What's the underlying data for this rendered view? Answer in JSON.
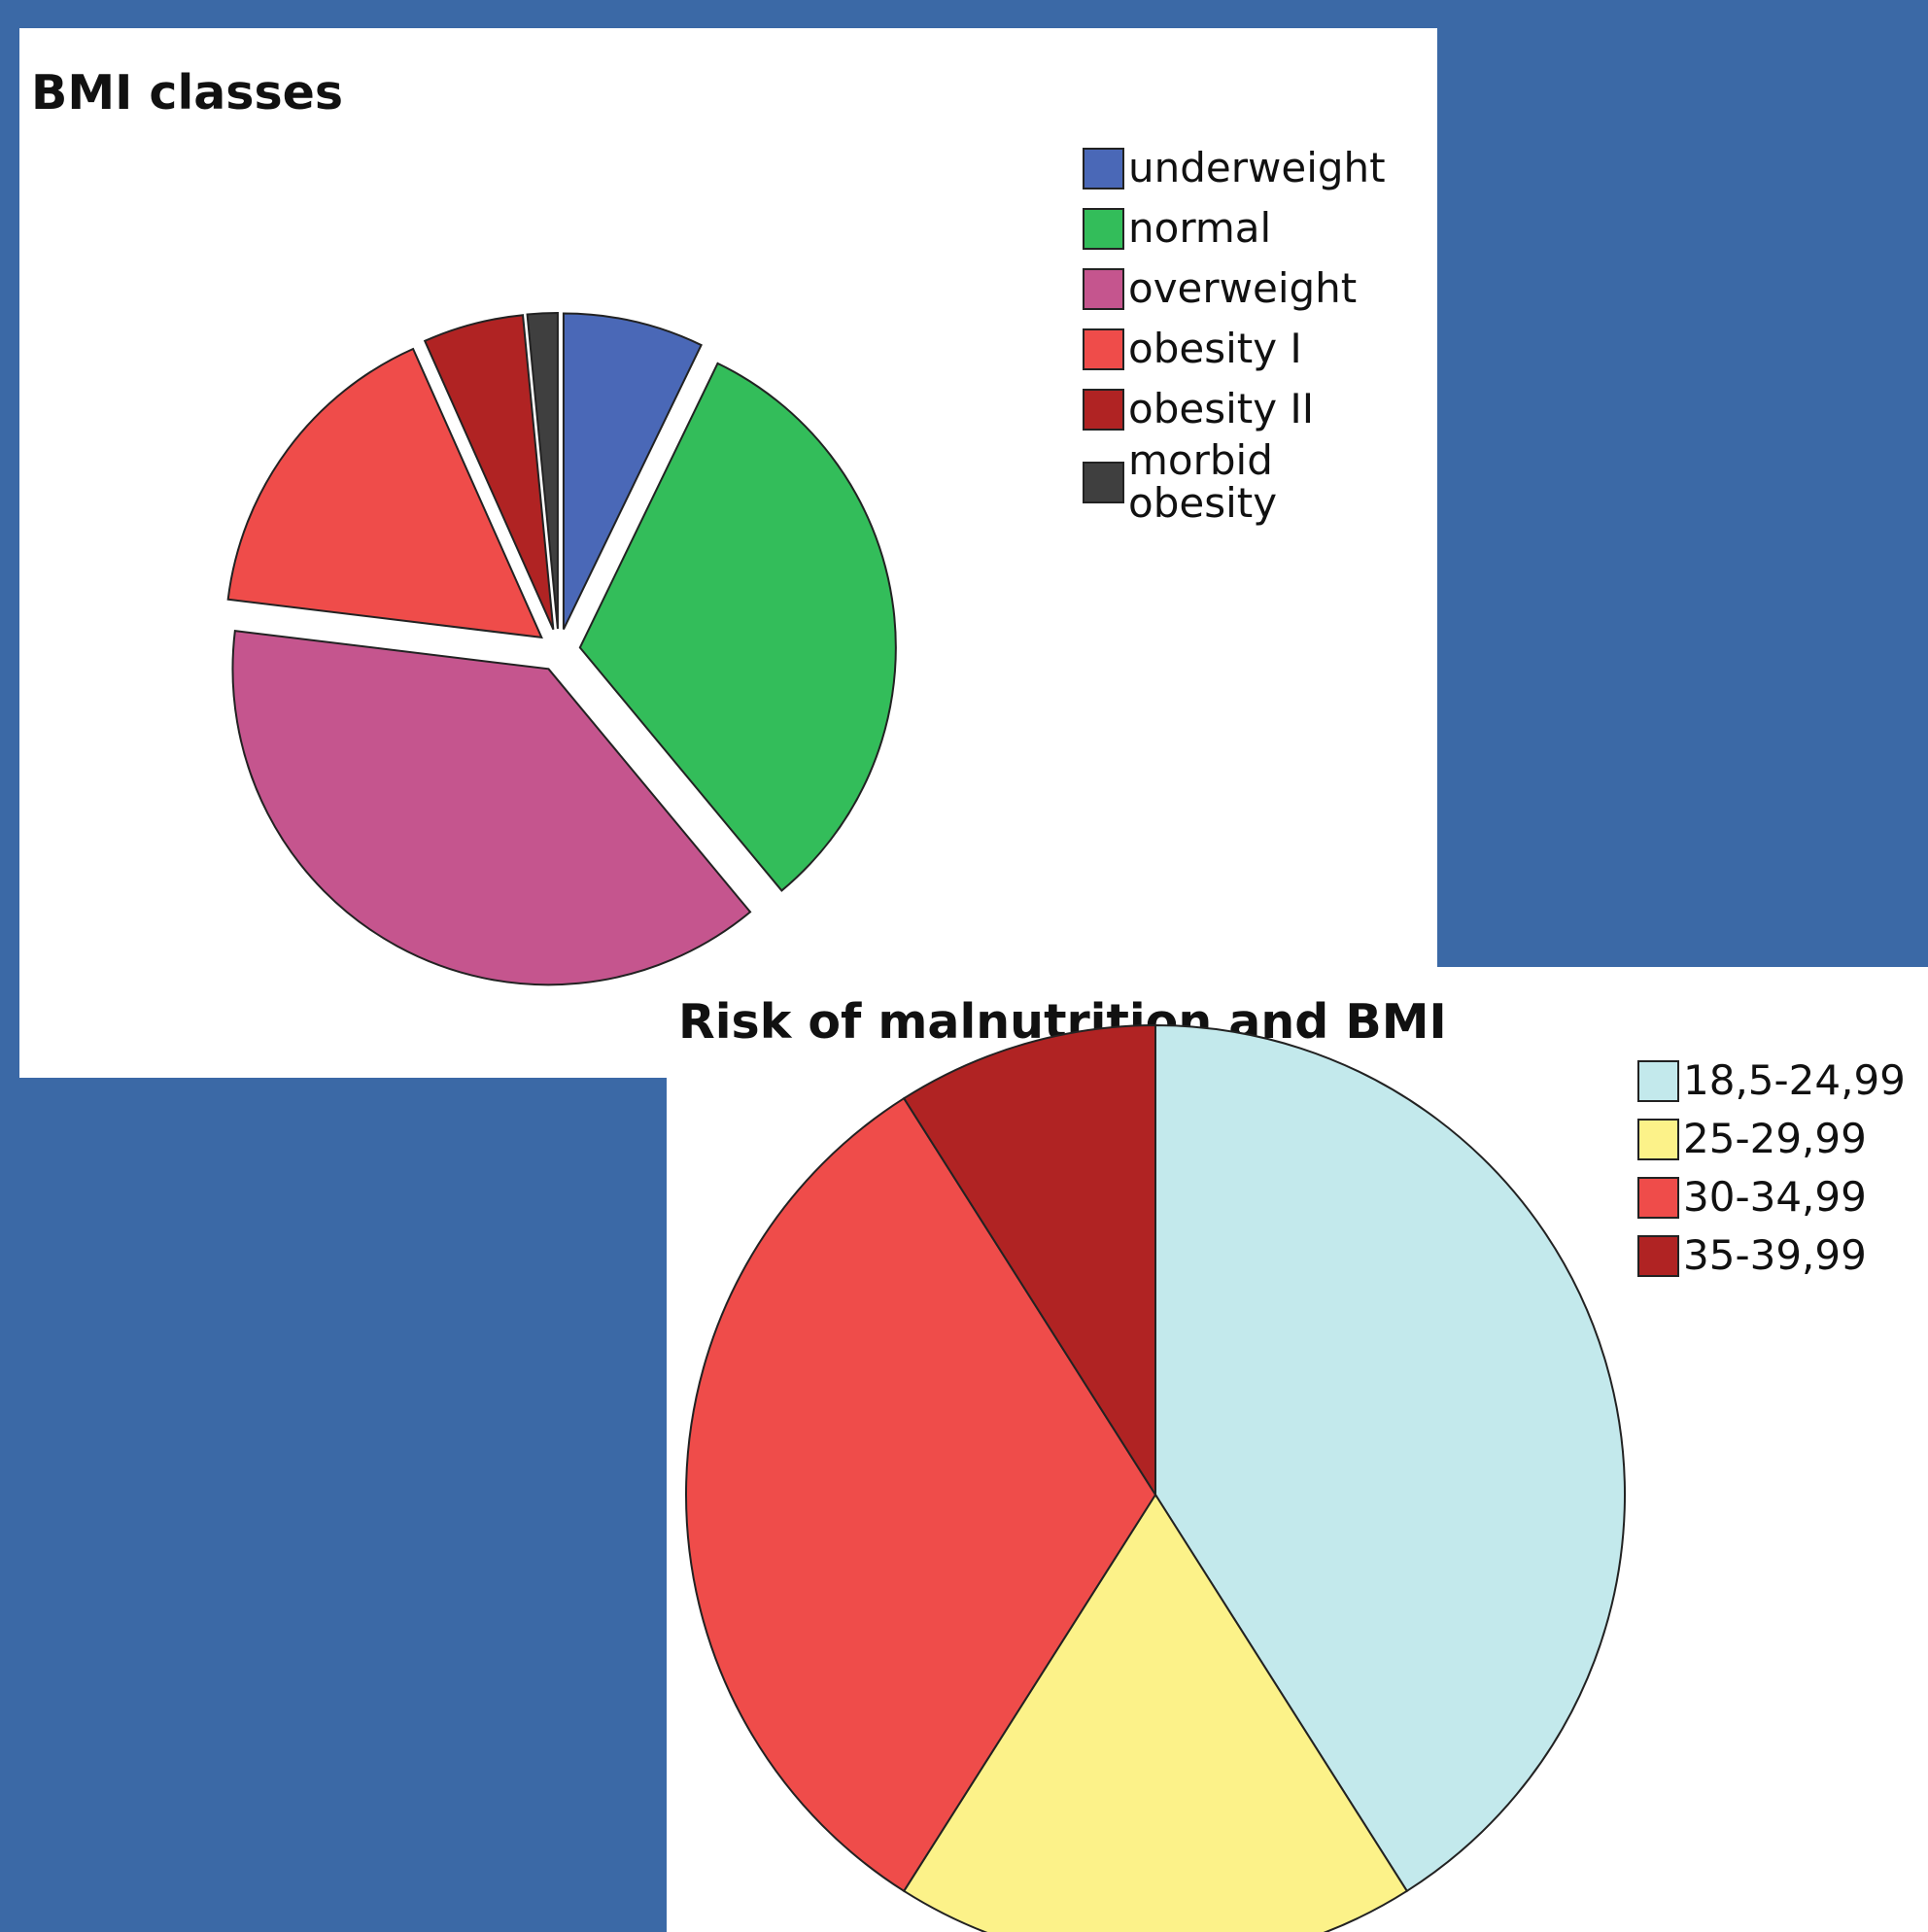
{
  "chart_data": [
    {
      "type": "pie",
      "title": "BMI classes",
      "labels": [
        "underweight",
        "normal",
        "overweight",
        "obesity I",
        "obesity II",
        "morbid obesity"
      ],
      "values": [
        7,
        31,
        37,
        16,
        5,
        1.5
      ],
      "colors": [
        "#4a68b7",
        "#33bd5a",
        "#c5558e",
        "#ef4c4a",
        "#b02323",
        "#3f3f3f"
      ],
      "exploded": true,
      "legend_position": "top-right"
    },
    {
      "type": "pie",
      "title": "Risk of malnutrition and BMI",
      "labels": [
        "18,5-24,99",
        "25-29,99",
        "30-34,99",
        "35-39,99"
      ],
      "values": [
        41,
        18,
        32,
        9
      ],
      "colors": [
        "#c3e9ec",
        "#fcf289",
        "#ef4c4a",
        "#b02323"
      ],
      "legend_position": "top-right"
    }
  ]
}
